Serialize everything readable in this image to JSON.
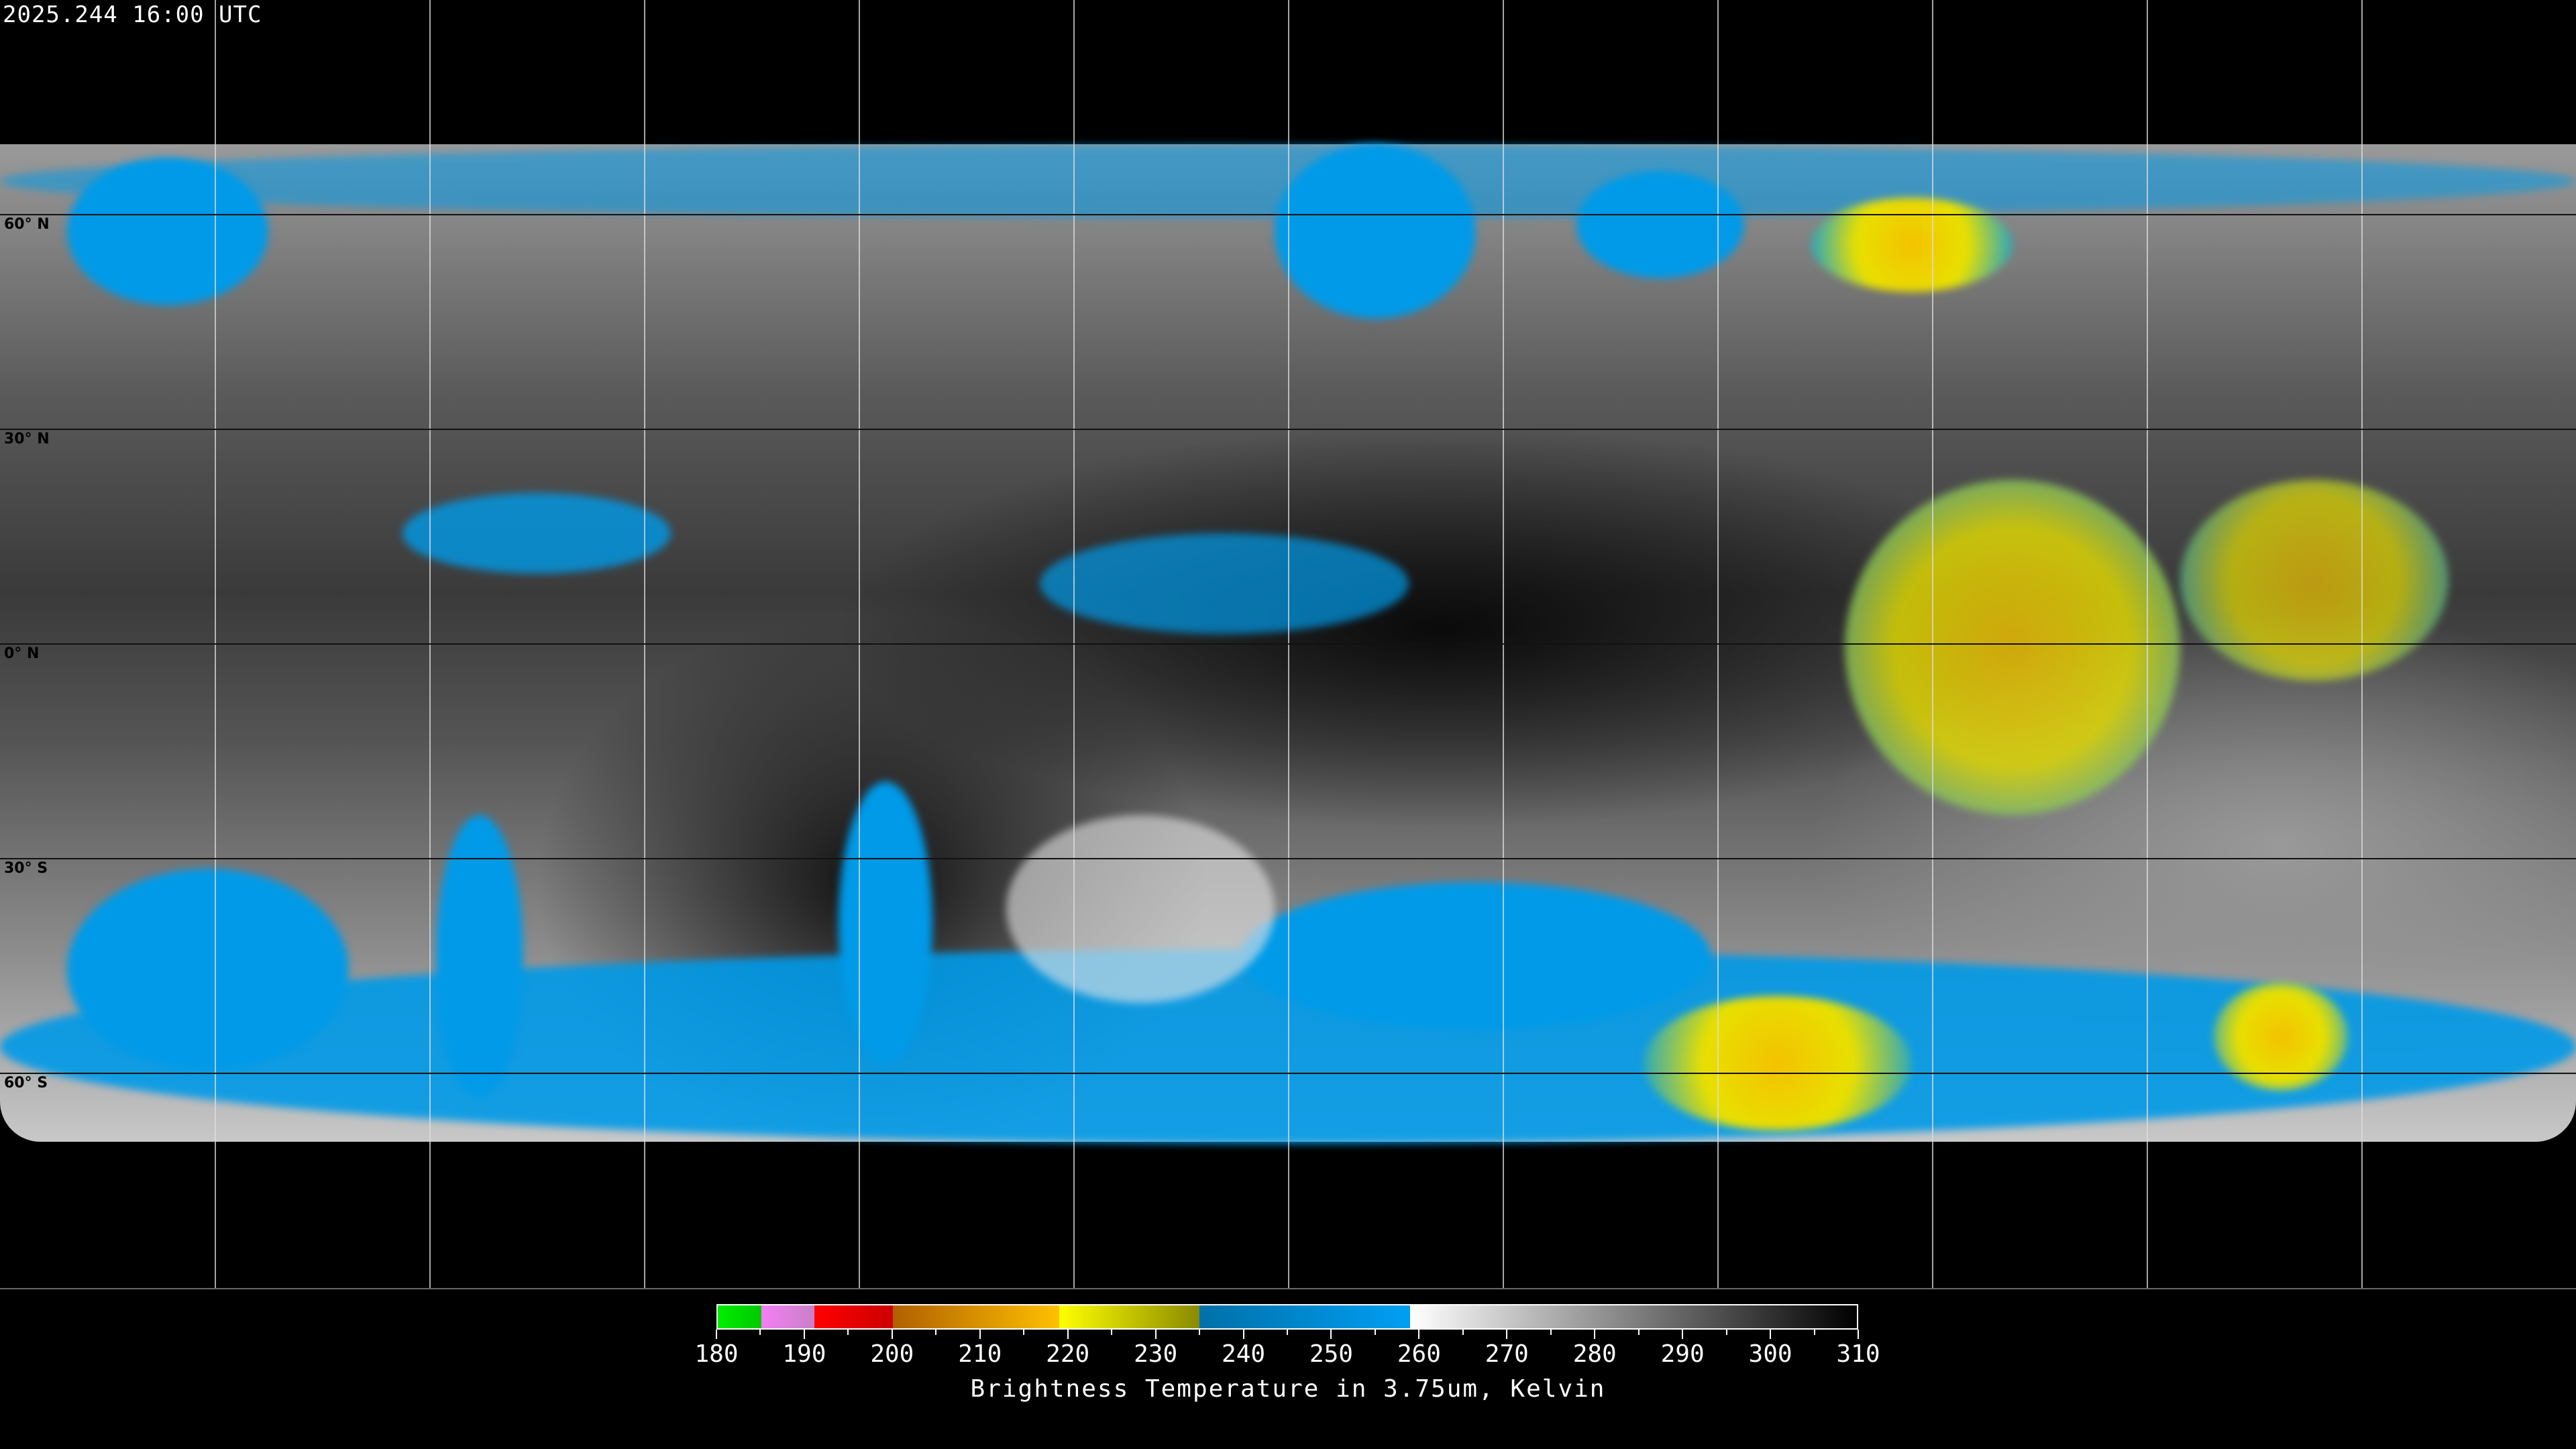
{
  "header": {
    "timestamp": "2025.244 16:00 UTC"
  },
  "map": {
    "projection": "equirectangular",
    "lat_labels": [
      "60° N",
      "30° N",
      "0° N",
      "30° S",
      "60° S"
    ],
    "background_color": "#000000",
    "gridline_color": "#dddddd"
  },
  "colorbar": {
    "title": "Brightness Temperature in 3.75um, Kelvin",
    "min": 180,
    "max": 310,
    "tick_labels": [
      "180",
      "190",
      "200",
      "210",
      "220",
      "230",
      "240",
      "250",
      "260",
      "270",
      "280",
      "290",
      "300",
      "310"
    ],
    "segments": [
      {
        "from": 180,
        "to": 185,
        "colors": [
          "#00ee00",
          "#00c800"
        ]
      },
      {
        "from": 185,
        "to": 191,
        "colors": [
          "#f47ff4",
          "#c880c8"
        ]
      },
      {
        "from": 191,
        "to": 200,
        "colors": [
          "#ff0000",
          "#cc0000"
        ]
      },
      {
        "from": 200,
        "to": 219,
        "colors": [
          "#b06000",
          "#ffc000"
        ]
      },
      {
        "from": 219,
        "to": 235,
        "colors": [
          "#ffff00",
          "#8a8a00"
        ]
      },
      {
        "from": 235,
        "to": 259,
        "colors": [
          "#0070a8",
          "#009ff4"
        ]
      },
      {
        "from": 259,
        "to": 310,
        "colors": [
          "#ffffff",
          "#000000"
        ]
      }
    ]
  }
}
